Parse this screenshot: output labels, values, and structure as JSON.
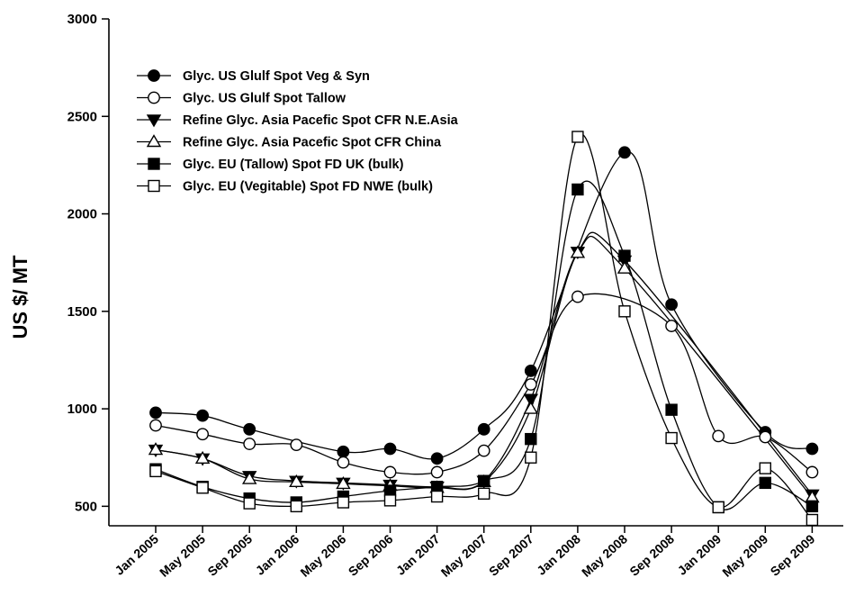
{
  "chart_data": {
    "type": "line",
    "title": "",
    "xlabel": "",
    "ylabel": "US $/ MT",
    "ylim": [
      400,
      3000
    ],
    "yticks": [
      500,
      1000,
      1500,
      2000,
      2500,
      3000
    ],
    "categories": [
      "Jan 2005",
      "May 2005",
      "Sep 2005",
      "Jan 2006",
      "May 2006",
      "Sep 2006",
      "Jan 2007",
      "May 2007",
      "Sep 2007",
      "Jan 2008",
      "May 2008",
      "Sep 2008",
      "Jan 2009",
      "May 2009",
      "Sep 2009"
    ],
    "grid": false,
    "legend_position": "top-left",
    "series": [
      {
        "name": "Glyc. US Glulf Spot Veg & Syn",
        "marker": "circle-filled",
        "values": [
          980,
          965,
          895,
          null,
          780,
          795,
          745,
          895,
          1195,
          null,
          2315,
          1535,
          null,
          880,
          795
        ]
      },
      {
        "name": "Glyc. US Glulf Spot Tallow",
        "marker": "circle-open",
        "values": [
          915,
          870,
          820,
          815,
          725,
          675,
          675,
          785,
          1125,
          1575,
          null,
          1425,
          860,
          855,
          675
        ]
      },
      {
        "name": "Refine Glyc. Asia Pacefic Spot CFR N.E.Asia",
        "marker": "triangle-down-filled",
        "values": [
          790,
          745,
          655,
          630,
          620,
          610,
          600,
          630,
          1050,
          1805,
          1760,
          null,
          null,
          null,
          560
        ]
      },
      {
        "name": "Refine Glyc. Asia Pacefic Spot CFR China",
        "marker": "triangle-up-open",
        "values": [
          790,
          745,
          640,
          625,
          615,
          605,
          595,
          625,
          1000,
          1800,
          1720,
          null,
          null,
          null,
          545
        ]
      },
      {
        "name": "Glyc. EU (Tallow) Spot FD UK (bulk)",
        "marker": "square-filled",
        "values": [
          690,
          600,
          540,
          520,
          550,
          580,
          600,
          630,
          845,
          2125,
          1785,
          995,
          495,
          620,
          500
        ]
      },
      {
        "name": "Glyc. EU (Vegitable) Spot FD NWE (bulk)",
        "marker": "square-open",
        "values": [
          680,
          595,
          515,
          500,
          520,
          530,
          550,
          565,
          750,
          2395,
          1500,
          850,
          495,
          695,
          430
        ]
      }
    ]
  }
}
